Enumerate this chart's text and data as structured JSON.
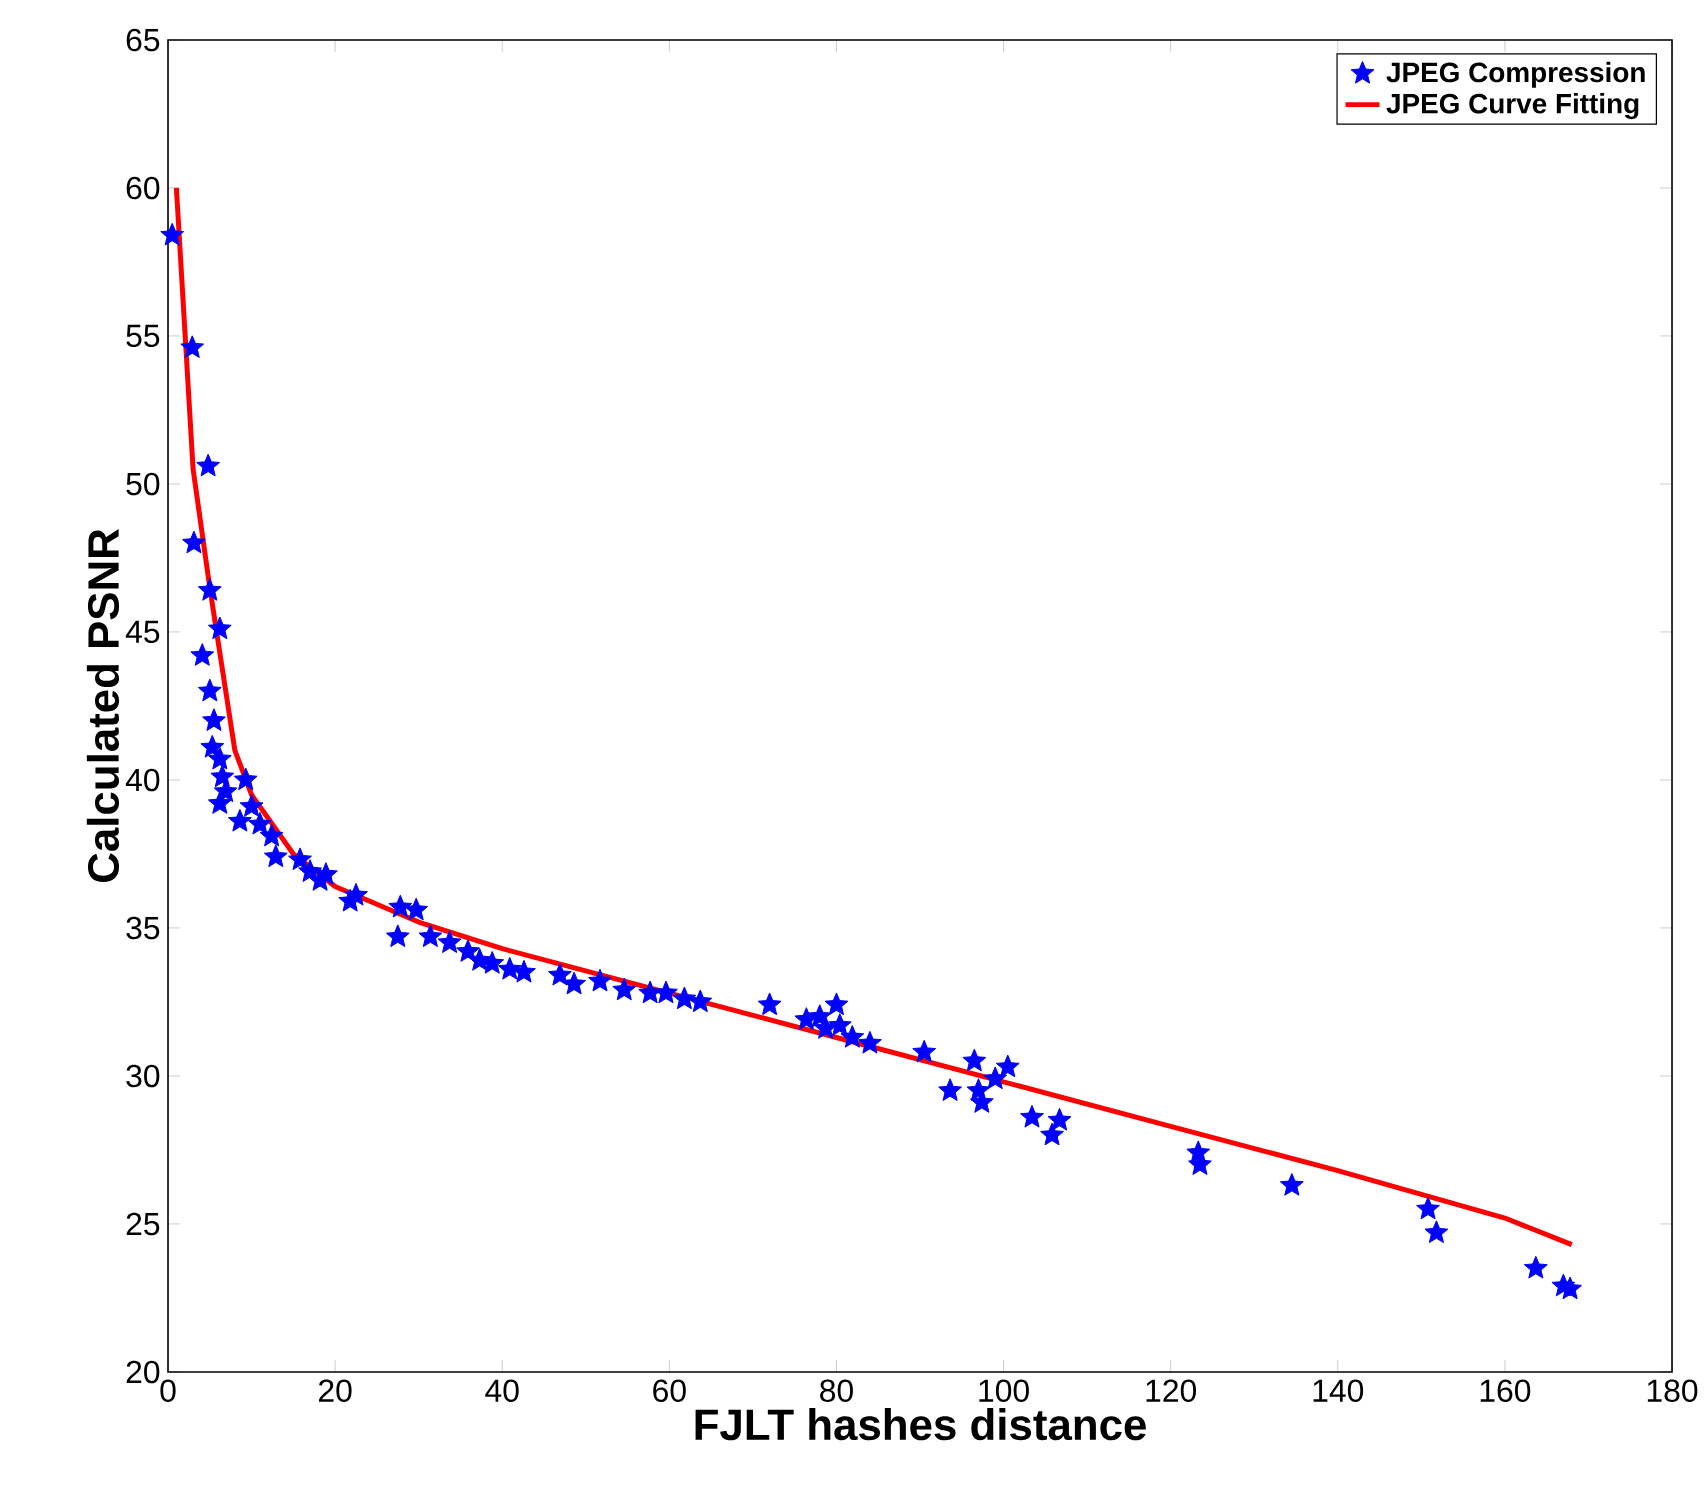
{
  "chart_data": {
    "type": "scatter",
    "xlabel": "FJLT hashes distance",
    "ylabel": "Calculated PSNR",
    "xlim": [
      0,
      180
    ],
    "ylim": [
      20,
      65
    ],
    "xticks": [
      0,
      20,
      40,
      60,
      80,
      100,
      120,
      140,
      160,
      180
    ],
    "yticks": [
      20,
      25,
      30,
      35,
      40,
      45,
      50,
      55,
      60,
      65
    ],
    "grid": false,
    "legend": "top right",
    "series": [
      {
        "name": "JPEG Compression",
        "color": "#0000ff",
        "marker": "star",
        "x": [
          0.5,
          2.9,
          4.8,
          3.1,
          5.0,
          6.2,
          4.1,
          5.0,
          5.5,
          5.3,
          6.2,
          6.5,
          6.2,
          6.9,
          9.3,
          10,
          8.6,
          11,
          12.4,
          12.9,
          15.8,
          17,
          18.2,
          18.9,
          22.5,
          21.8,
          27.8,
          29.7,
          27.5,
          31.4,
          33.7,
          35.9,
          37.3,
          38.8,
          40.9,
          42.6,
          46.9,
          48.6,
          51.7,
          54.6,
          57.7,
          59.6,
          61.8,
          63.7,
          72,
          76.4,
          78,
          78.7,
          80,
          80.4,
          81.9,
          84,
          90.5,
          93.6,
          96.5,
          97,
          97.4,
          99,
          100.5,
          103.4,
          105.8,
          106.7,
          123.3,
          123.5,
          134.5,
          150.8,
          151.8,
          163.7,
          167,
          167.8
        ],
        "values": [
          58.4,
          54.6,
          50.6,
          48.0,
          46.4,
          45.1,
          44.2,
          43,
          42,
          41.1,
          40.7,
          40.1,
          39.2,
          39.6,
          40.0,
          39.1,
          38.6,
          38.5,
          38.1,
          37.4,
          37.3,
          36.9,
          36.6,
          36.8,
          36.1,
          35.9,
          35.7,
          35.6,
          34.7,
          34.7,
          34.5,
          34.2,
          33.9,
          33.8,
          33.6,
          33.5,
          33.4,
          33.1,
          33.2,
          32.9,
          32.8,
          32.8,
          32.6,
          32.5,
          32.4,
          31.9,
          32.0,
          31.6,
          32.4,
          31.7,
          31.3,
          31.1,
          30.8,
          29.5,
          30.5,
          29.5,
          29.1,
          29.9,
          30.3,
          28.6,
          28.0,
          28.5,
          27.4,
          27.0,
          26.3,
          25.5,
          24.7,
          23.5,
          22.9,
          22.8
        ]
      },
      {
        "name": "JPEG Curve Fitting",
        "color": "#ff0000",
        "type": "line",
        "x": [
          1,
          3,
          5,
          8,
          10,
          15,
          20,
          30,
          40,
          60,
          80,
          100,
          120,
          140,
          160,
          168
        ],
        "values": [
          60,
          50.5,
          46.5,
          41,
          39.5,
          37.5,
          36.4,
          35.2,
          34.3,
          32.8,
          31.3,
          29.8,
          28.3,
          26.8,
          25.2,
          24.3
        ]
      }
    ]
  }
}
